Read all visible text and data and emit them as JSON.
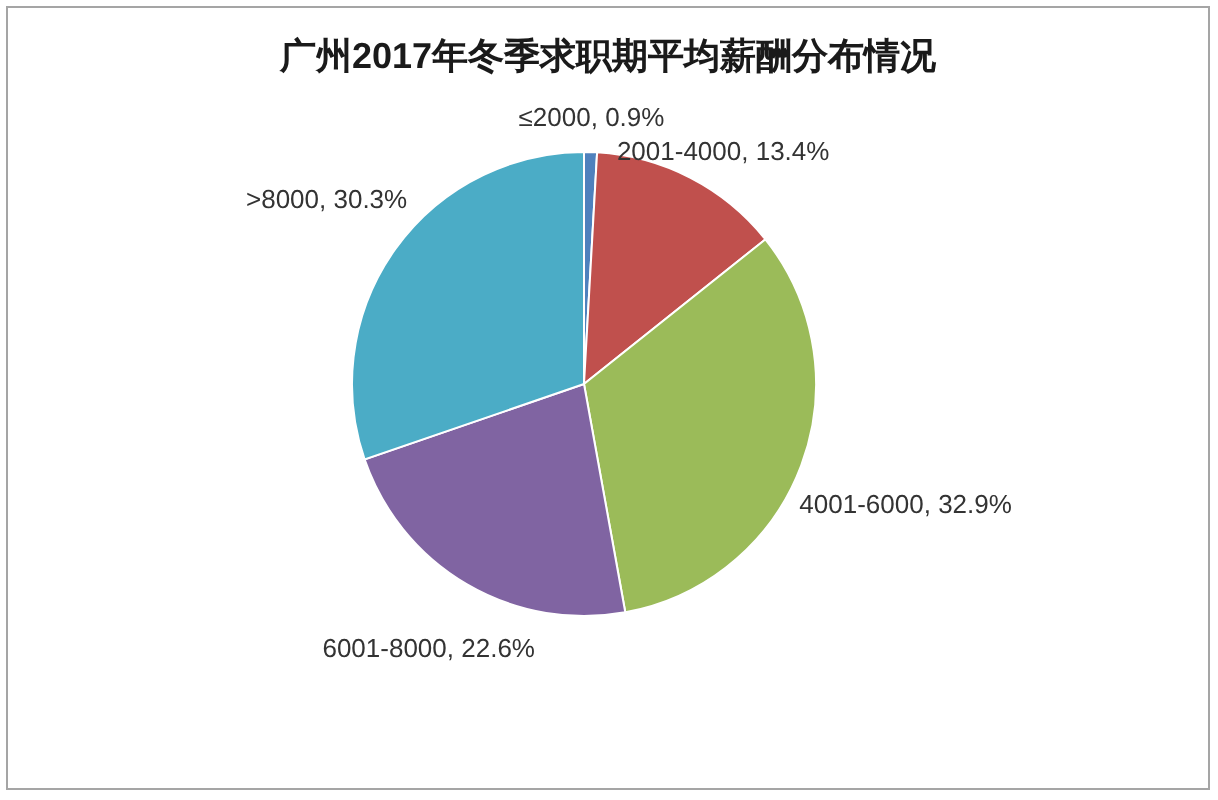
{
  "chart_data": {
    "type": "pie",
    "title": "广州2017年冬季求职期平均薪酬分布情况",
    "categories": [
      "≤2000",
      "2001-4000",
      "4001-6000",
      "6001-8000",
      ">8000"
    ],
    "values": [
      0.9,
      13.4,
      32.9,
      22.6,
      30.3
    ],
    "colors": [
      "#4f81bd",
      "#c0504d",
      "#9bbb59",
      "#8064a2",
      "#4bacc6"
    ],
    "value_labels": [
      "0.9%",
      "13.4%",
      "32.9%",
      "22.6%",
      "30.3%"
    ]
  }
}
